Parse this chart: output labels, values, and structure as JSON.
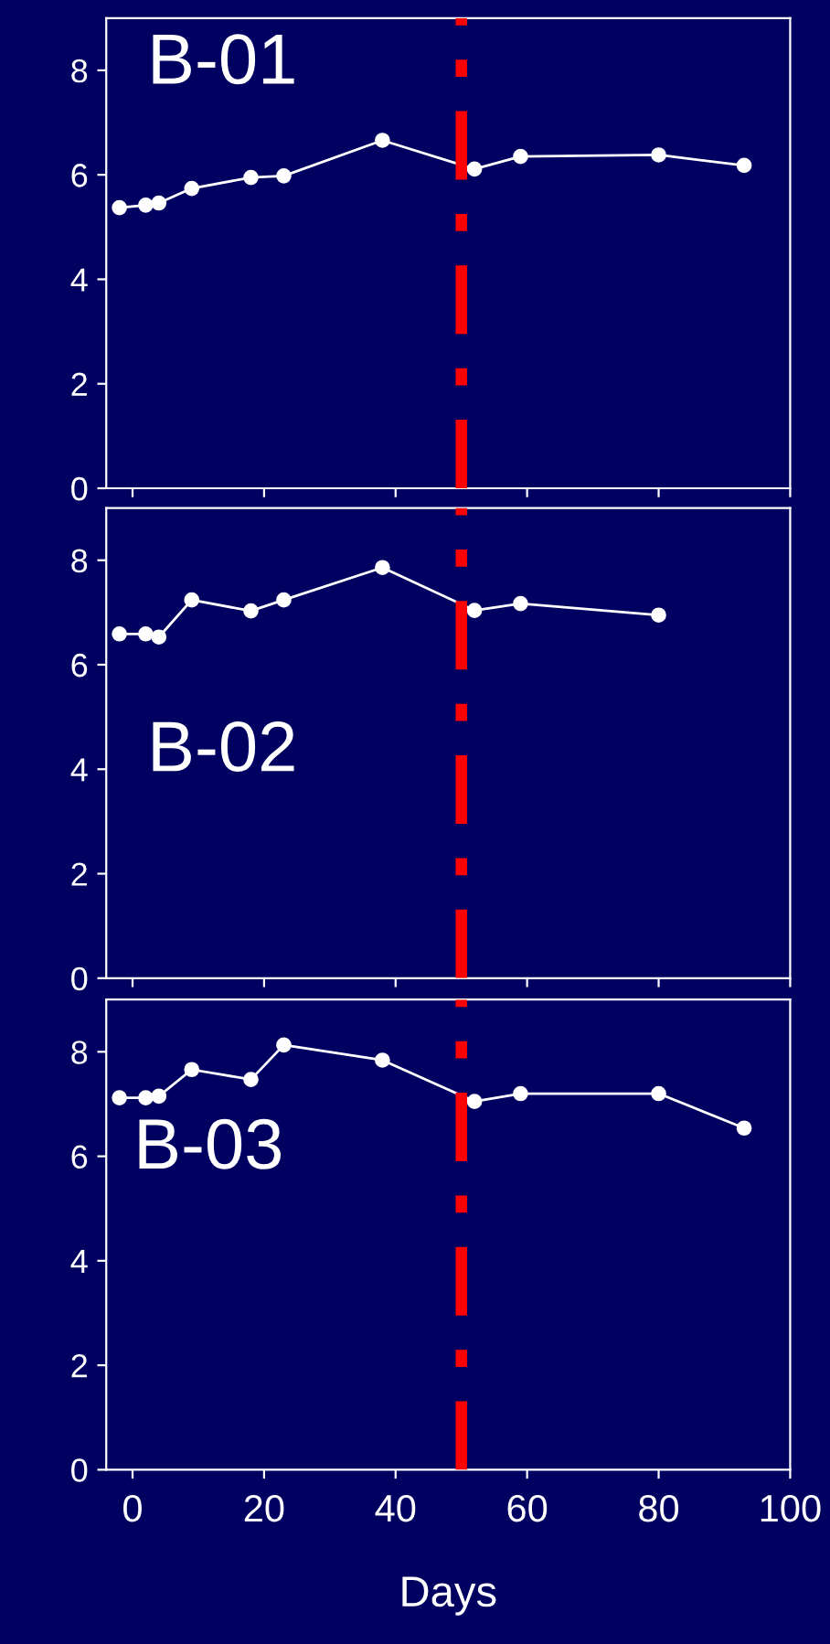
{
  "chart_data": [
    {
      "type": "line",
      "title": "B-01",
      "x": [
        -2,
        2,
        4,
        9,
        18,
        23,
        38,
        52,
        59,
        80,
        93
      ],
      "series": [
        {
          "color": "#ffffff",
          "values": [
            5.37,
            5.42,
            5.46,
            5.74,
            5.95,
            5.98,
            6.66,
            6.11,
            6.35,
            6.38,
            6.18
          ]
        }
      ],
      "xlim": [
        -4,
        100
      ],
      "xticks": [
        {
          "value": 0,
          "label": null
        },
        {
          "value": 20,
          "label": null
        },
        {
          "value": 40,
          "label": null
        },
        {
          "value": 60,
          "label": null
        },
        {
          "value": 80,
          "label": null
        },
        {
          "value": 100,
          "label": null
        }
      ],
      "ylim": [
        0,
        9
      ],
      "yticks": [
        0,
        2,
        4,
        6,
        8
      ],
      "tick_labels": "y",
      "marker": "circle",
      "line_style": "solid",
      "grid": false,
      "ref_lines": [
        {
          "axis": "x",
          "value": 50,
          "color": "#ff0000",
          "line_style": "dashed"
        }
      ]
    },
    {
      "type": "line",
      "title": "B-02",
      "x": [
        -2,
        2,
        4,
        9,
        18,
        23,
        38,
        52,
        59,
        80
      ],
      "series": [
        {
          "color": "#ffffff",
          "values": [
            6.59,
            6.59,
            6.53,
            7.24,
            7.03,
            7.24,
            7.86,
            7.04,
            7.17,
            6.95
          ]
        }
      ],
      "xlim": [
        -4,
        100
      ],
      "xticks": [
        {
          "value": 0,
          "label": null
        },
        {
          "value": 20,
          "label": null
        },
        {
          "value": 40,
          "label": null
        },
        {
          "value": 60,
          "label": null
        },
        {
          "value": 80,
          "label": null
        },
        {
          "value": 100,
          "label": null
        }
      ],
      "ylim": [
        0,
        9
      ],
      "yticks": [
        0,
        2,
        4,
        6,
        8
      ],
      "tick_labels": "y",
      "marker": "circle",
      "line_style": "solid",
      "grid": false,
      "ref_lines": [
        {
          "axis": "x",
          "value": 50,
          "color": "#ff0000",
          "line_style": "dashed"
        }
      ]
    },
    {
      "type": "line",
      "title": "B-03",
      "xlabel": "Days",
      "x": [
        -2,
        2,
        4,
        9,
        18,
        23,
        38,
        52,
        59,
        80,
        93
      ],
      "series": [
        {
          "color": "#ffffff",
          "values": [
            7.12,
            7.12,
            7.15,
            7.66,
            7.47,
            8.13,
            7.84,
            7.05,
            7.2,
            7.2,
            6.54
          ]
        }
      ],
      "xlim": [
        -4,
        100
      ],
      "xticks": [
        0,
        20,
        40,
        60,
        80,
        100
      ],
      "ylim": [
        0,
        9
      ],
      "yticks": [
        0,
        2,
        4,
        6,
        8
      ],
      "marker": "circle",
      "line_style": "solid",
      "grid": false,
      "ref_lines": [
        {
          "axis": "x",
          "value": 50,
          "color": "#ff0000",
          "line_style": "dashed"
        }
      ]
    }
  ]
}
